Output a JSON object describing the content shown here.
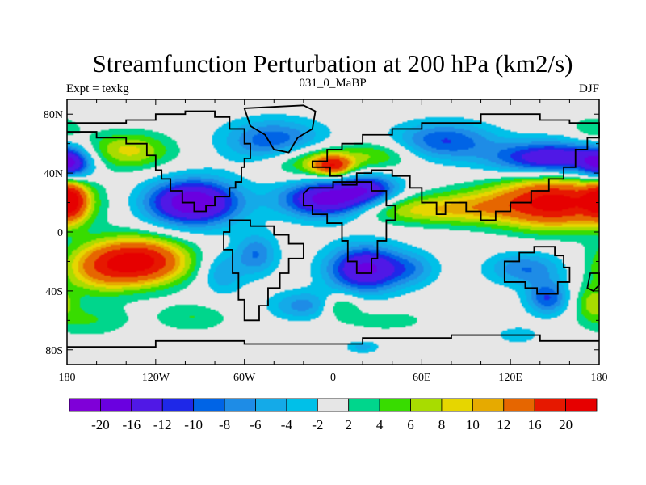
{
  "chart_data": {
    "type": "contour-map",
    "title": "Streamfunction Perturbation at 200 hPa (km2/s)",
    "left_string": "Expt = texkg",
    "center_string": "031_0_MaBP",
    "right_string": "DJF",
    "x_ticks": [
      {
        "value": -180,
        "label": "180"
      },
      {
        "value": -120,
        "label": "120W"
      },
      {
        "value": -60,
        "label": "60W"
      },
      {
        "value": 0,
        "label": "0"
      },
      {
        "value": 60,
        "label": "60E"
      },
      {
        "value": 120,
        "label": "120E"
      },
      {
        "value": 180,
        "label": "180"
      }
    ],
    "y_ticks": [
      {
        "value": 80,
        "label": "80N"
      },
      {
        "value": 40,
        "label": "40N"
      },
      {
        "value": 0,
        "label": "0"
      },
      {
        "value": -40,
        "label": "40S"
      },
      {
        "value": -80,
        "label": "80S"
      }
    ],
    "xlim": [
      -180,
      180
    ],
    "ylim": [
      -90,
      90
    ],
    "contour_levels": [
      -20,
      -16,
      -12,
      -10,
      -8,
      -6,
      -4,
      -2,
      2,
      4,
      6,
      8,
      10,
      12,
      16,
      20
    ],
    "colorbar_labels": [
      "-20",
      "-16",
      "-12",
      "-10",
      "-8",
      "-6",
      "-4",
      "-2",
      "2",
      "4",
      "6",
      "8",
      "10",
      "12",
      "16",
      "20"
    ],
    "colors": [
      "#7f00d8",
      "#6a00e0",
      "#5018e6",
      "#1e28e8",
      "#0064e6",
      "#1e8ce6",
      "#14aae8",
      "#00c0e8",
      "#e6e6e6",
      "#00d68c",
      "#38dc00",
      "#a8dc00",
      "#e6d600",
      "#e6aa00",
      "#e66600",
      "#e61800",
      "#e60000"
    ],
    "anomalies": [
      {
        "lon": 150,
        "lat": 20,
        "value": 22,
        "slon": 28,
        "slat": 12
      },
      {
        "lon": 55,
        "lat": 15,
        "value": 8,
        "slon": 35,
        "slat": 7
      },
      {
        "lon": 95,
        "lat": 18,
        "value": 5,
        "slon": 22,
        "slat": 9
      },
      {
        "lon": -130,
        "lat": -20,
        "value": 21,
        "slon": 22,
        "slat": 11
      },
      {
        "lon": -160,
        "lat": -25,
        "value": 9,
        "slon": 18,
        "slat": 12
      },
      {
        "lon": -178,
        "lat": 22,
        "value": 15,
        "slon": 8,
        "slat": 10
      },
      {
        "lon": -140,
        "lat": 55,
        "value": 9,
        "slon": 22,
        "slat": 9
      },
      {
        "lon": -15,
        "lat": 48,
        "value": 8,
        "slon": 20,
        "slat": 8
      },
      {
        "lon": 0,
        "lat": 45,
        "value": 15,
        "slon": 9,
        "slat": 5
      },
      {
        "lon": 30,
        "lat": 52,
        "value": 6,
        "slon": 18,
        "slat": 7
      },
      {
        "lon": 175,
        "lat": -48,
        "value": 6,
        "slon": 8,
        "slat": 8
      },
      {
        "lon": 5,
        "lat": -50,
        "value": 6,
        "slon": 9,
        "slat": 6
      },
      {
        "lon": -165,
        "lat": -60,
        "value": 4,
        "slon": 20,
        "slat": 8
      },
      {
        "lon": -95,
        "lat": -58,
        "value": 4,
        "slon": 18,
        "slat": 7
      },
      {
        "lon": 35,
        "lat": -60,
        "value": 3,
        "slon": 25,
        "slat": 6
      },
      {
        "lon": 175,
        "lat": 70,
        "value": 4,
        "slon": 10,
        "slat": 6
      },
      {
        "lon": -95,
        "lat": 20,
        "value": -20,
        "slon": 22,
        "slat": 11
      },
      {
        "lon": -178,
        "lat": 45,
        "value": -14,
        "slon": 10,
        "slat": 8
      },
      {
        "lon": -40,
        "lat": 62,
        "value": -10,
        "slon": 24,
        "slat": 10
      },
      {
        "lon": -3,
        "lat": 22,
        "value": -19,
        "slon": 22,
        "slat": 9
      },
      {
        "lon": 25,
        "lat": 30,
        "value": -10,
        "slon": 14,
        "slat": 7
      },
      {
        "lon": 75,
        "lat": 62,
        "value": -10,
        "slon": 24,
        "slat": 9
      },
      {
        "lon": 148,
        "lat": 50,
        "value": -16,
        "slon": 28,
        "slat": 8
      },
      {
        "lon": 22,
        "lat": -25,
        "value": -17,
        "slon": 18,
        "slat": 11
      },
      {
        "lon": -52,
        "lat": -15,
        "value": -8,
        "slon": 10,
        "slat": 10
      },
      {
        "lon": -75,
        "lat": -28,
        "value": -6,
        "slon": 10,
        "slat": 10
      },
      {
        "lon": -20,
        "lat": -50,
        "value": -7,
        "slon": 16,
        "slat": 7
      },
      {
        "lon": 130,
        "lat": -25,
        "value": -8,
        "slon": 18,
        "slat": 8
      },
      {
        "lon": 145,
        "lat": -45,
        "value": -10,
        "slon": 10,
        "slat": 8
      },
      {
        "lon": 55,
        "lat": -25,
        "value": -5,
        "slon": 12,
        "slat": 8
      },
      {
        "lon": 20,
        "lat": -78,
        "value": -5,
        "slon": 8,
        "slat": 3
      },
      {
        "lon": 125,
        "lat": -70,
        "value": -4,
        "slon": 10,
        "slat": 4
      }
    ]
  }
}
